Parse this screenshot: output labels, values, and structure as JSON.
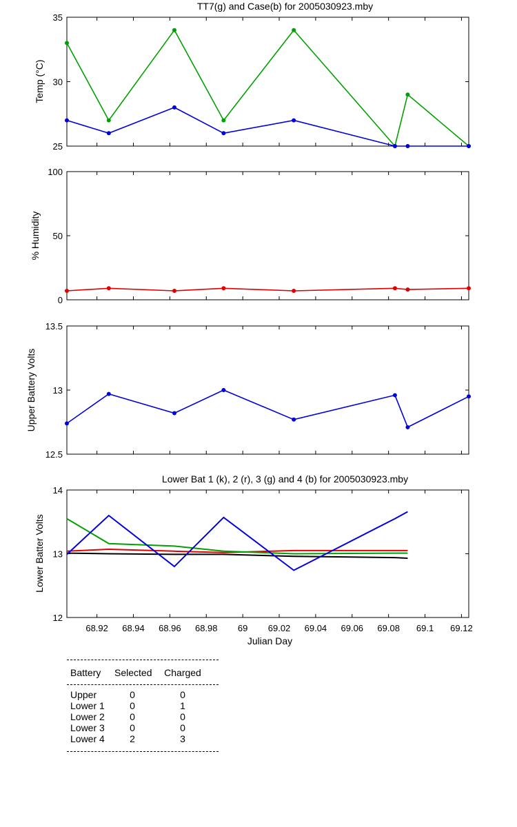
{
  "chart_data": [
    {
      "type": "line",
      "title": "TT7(g) and Case(b) for 2005030923.mby",
      "xlabel": "",
      "ylabel": "Temp  (°C)",
      "xlim": [
        68.9035,
        69.124
      ],
      "ylim": [
        25,
        35
      ],
      "yticks": [
        "25",
        "30",
        "35"
      ],
      "series": [
        {
          "name": "TT7",
          "color": "#00a000",
          "x": [
            68.9035,
            68.9265,
            68.9625,
            68.9895,
            69.028,
            69.0835,
            69.0905,
            69.124
          ],
          "y": [
            33,
            27,
            34,
            27,
            34,
            25,
            29,
            25
          ]
        },
        {
          "name": "Case",
          "color": "#0000e0",
          "x": [
            68.9035,
            68.9265,
            68.9625,
            68.9895,
            69.028,
            69.0835,
            69.0905,
            69.124
          ],
          "y": [
            27,
            26,
            28,
            26,
            27,
            25,
            25,
            25
          ]
        }
      ]
    },
    {
      "type": "line",
      "title": "",
      "xlabel": "",
      "ylabel": "% Humidity",
      "xlim": [
        68.9035,
        69.124
      ],
      "ylim": [
        0,
        100
      ],
      "yticks": [
        "0",
        "50",
        "100"
      ],
      "series": [
        {
          "color": "#e00000",
          "x": [
            68.9035,
            68.9265,
            68.9625,
            68.9895,
            69.028,
            69.0835,
            69.0905,
            69.124
          ],
          "y": [
            7,
            9,
            7,
            9,
            7,
            9,
            8,
            9
          ]
        }
      ]
    },
    {
      "type": "line",
      "title": "",
      "xlabel": "",
      "ylabel": "Upper Battery Volts",
      "xlim": [
        68.9035,
        69.124
      ],
      "ylim": [
        12.5,
        13.5
      ],
      "yticks": [
        "12.5",
        "13",
        "13.5"
      ],
      "series": [
        {
          "color": "#0000e0",
          "x": [
            68.9035,
            68.9265,
            68.9625,
            68.9895,
            69.028,
            69.0835,
            69.0905,
            69.124
          ],
          "y": [
            12.74,
            12.97,
            12.82,
            13.0,
            12.77,
            12.96,
            12.71,
            12.95
          ]
        }
      ]
    },
    {
      "type": "line",
      "title": "Lower Bat 1 (k), 2 (r), 3 (g) and 4 (b) for 2005030923.mby",
      "xlabel": "Julian Day",
      "ylabel": "Lower Batter Volts",
      "xlim": [
        68.9035,
        69.124
      ],
      "ylim": [
        12,
        14
      ],
      "yticks": [
        "12",
        "13",
        "14"
      ],
      "xticks": [
        "68.92",
        "68.94",
        "68.96",
        "68.98",
        "69",
        "69.02",
        "69.04",
        "69.06",
        "69.08",
        "69.1",
        "69.12"
      ],
      "series": [
        {
          "name": "1",
          "color": "#000000",
          "x": [
            68.9035,
            68.9265,
            68.9625,
            68.9895,
            69.028,
            69.0835,
            69.0905
          ],
          "y": [
            13.01,
            13.0,
            12.99,
            12.99,
            12.96,
            12.94,
            12.93
          ]
        },
        {
          "name": "2",
          "color": "#e00000",
          "x": [
            68.9035,
            68.9265,
            68.9625,
            68.9895,
            69.028,
            69.0835,
            69.0905
          ],
          "y": [
            13.04,
            13.07,
            13.04,
            13.02,
            13.05,
            13.05,
            13.05
          ]
        },
        {
          "name": "3",
          "color": "#00a000",
          "x": [
            68.9035,
            68.9265,
            68.9625,
            68.9895,
            69.028,
            69.0835,
            69.0905
          ],
          "y": [
            13.55,
            13.16,
            13.12,
            13.04,
            13.0,
            13.01,
            13.01
          ]
        },
        {
          "name": "4",
          "color": "#0000e0",
          "x": [
            68.9035,
            68.9265,
            68.9625,
            68.9895,
            69.028,
            69.0835,
            69.0905
          ],
          "y": [
            12.99,
            13.6,
            12.8,
            13.57,
            12.74,
            13.55,
            13.66
          ]
        }
      ]
    }
  ],
  "status_table": {
    "headers": [
      "Battery",
      "Selected",
      "Charged"
    ],
    "rows": [
      [
        "Upper",
        "0",
        "0"
      ],
      [
        "Lower 1",
        "0",
        "1"
      ],
      [
        "Lower 2",
        "0",
        "0"
      ],
      [
        "Lower 3",
        "0",
        "0"
      ],
      [
        "Lower 4",
        "2",
        "3"
      ]
    ]
  }
}
